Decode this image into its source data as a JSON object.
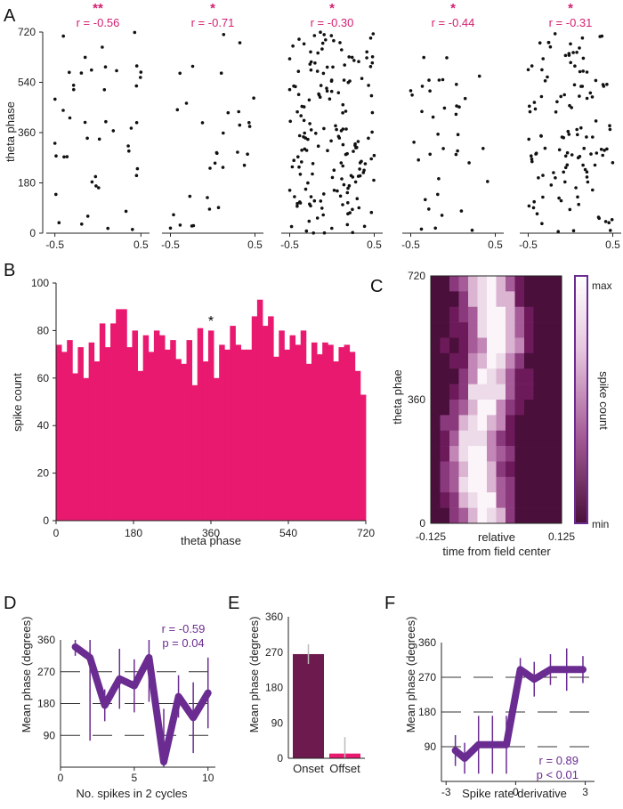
{
  "panels": {
    "A": "A",
    "B": "B",
    "C": "C",
    "D": "D",
    "E": "E",
    "F": "F"
  },
  "colors": {
    "magenta": "#e8196f",
    "purple": "#6b2c91",
    "dark_purple": "#6d1a4e",
    "stat_red": "#d42072"
  },
  "chart_data": [
    {
      "id": "A",
      "type": "scatter",
      "ylabel": "theta phase",
      "yticks": [
        0,
        180,
        360,
        540,
        720
      ],
      "xticks": [
        "-0.5",
        "0.5"
      ],
      "xlim": [
        -0.6,
        0.6
      ],
      "ylim": [
        0,
        720
      ],
      "subplots": [
        {
          "stars": "**",
          "r": "r = -0.56",
          "seed": 11,
          "n": 45
        },
        {
          "stars": "*",
          "r": "r = -0.71",
          "seed": 23,
          "n": 32
        },
        {
          "stars": "*",
          "r": "r = -0.30",
          "seed": 37,
          "n": 170
        },
        {
          "stars": "*",
          "r": "r = -0.44",
          "seed": 51,
          "n": 38
        },
        {
          "stars": "*",
          "r": "r = -0.31",
          "seed": 67,
          "n": 120
        }
      ]
    },
    {
      "id": "B",
      "type": "bar",
      "xlabel": "theta phase",
      "ylabel": "spike count",
      "xticks": [
        0,
        180,
        360,
        540,
        720
      ],
      "yticks": [
        0,
        20,
        40,
        60,
        80,
        100
      ],
      "xlim": [
        0,
        720
      ],
      "ylim": [
        0,
        100
      ],
      "annotation": "*",
      "values": [
        74,
        71,
        76,
        62,
        73,
        60,
        75,
        67,
        83,
        73,
        83,
        89,
        89,
        73,
        80,
        63,
        78,
        71,
        80,
        78,
        72,
        76,
        68,
        66,
        76,
        57,
        81,
        67,
        80,
        60,
        74,
        72,
        82,
        74,
        72,
        72,
        86,
        93,
        82,
        86,
        69,
        80,
        72,
        78,
        74,
        80,
        66,
        75,
        70,
        75,
        74,
        67,
        73,
        74,
        71,
        63,
        53
      ]
    },
    {
      "id": "C",
      "type": "heatmap",
      "xlabel_1": "relative",
      "xlabel_2": "time from field center",
      "ylabel": "theta phae",
      "xticks": [
        "-0.125",
        "0.125"
      ],
      "yticks": [
        0,
        360,
        720
      ],
      "colorbar_label": "spike count",
      "colorbar_max": "max",
      "colorbar_min": "min"
    },
    {
      "id": "D",
      "type": "line",
      "xlabel": "No. spikes in 2 cycles",
      "ylabel": "Mean phase (degrees)",
      "xticks": [
        0,
        5,
        10
      ],
      "yticks": [
        90,
        180,
        270,
        360
      ],
      "xlim": [
        0,
        10.5
      ],
      "ylim": [
        0,
        360
      ],
      "stat_r": "r = -0.59",
      "stat_p": "p = 0.04",
      "x": [
        1,
        2,
        3,
        4,
        5,
        6,
        7,
        8,
        9,
        10
      ],
      "y": [
        340,
        310,
        175,
        250,
        230,
        310,
        15,
        200,
        140,
        210
      ],
      "err": [
        25,
        235,
        45,
        85,
        75,
        125,
        150,
        60,
        100,
        100
      ]
    },
    {
      "id": "E",
      "type": "bar",
      "ylabel": "Mean phase (degrees)",
      "categories": [
        "Onset",
        "Offset"
      ],
      "values": [
        265,
        12
      ],
      "err": [
        25,
        42
      ],
      "yticks": [
        0,
        90,
        180,
        270,
        360
      ],
      "ylim": [
        0,
        360
      ]
    },
    {
      "id": "F",
      "type": "line",
      "xlabel": "Spike rate derivative",
      "ylabel": "Mean phase (degrees)",
      "xticks": [
        -3,
        0,
        3
      ],
      "yticks": [
        90,
        180,
        270,
        360
      ],
      "xlim": [
        -3.2,
        3.4
      ],
      "ylim": [
        0,
        360
      ],
      "stat_r": "r = 0.89",
      "stat_p": "p < 0.01",
      "x": [
        -2.6,
        -2.2,
        -1.6,
        -1.0,
        -0.4,
        0.2,
        0.8,
        1.5,
        2.2,
        2.9
      ],
      "y": [
        80,
        60,
        95,
        95,
        95,
        290,
        265,
        290,
        290,
        290
      ],
      "err": [
        40,
        40,
        75,
        75,
        75,
        30,
        45,
        40,
        55,
        35
      ]
    }
  ]
}
